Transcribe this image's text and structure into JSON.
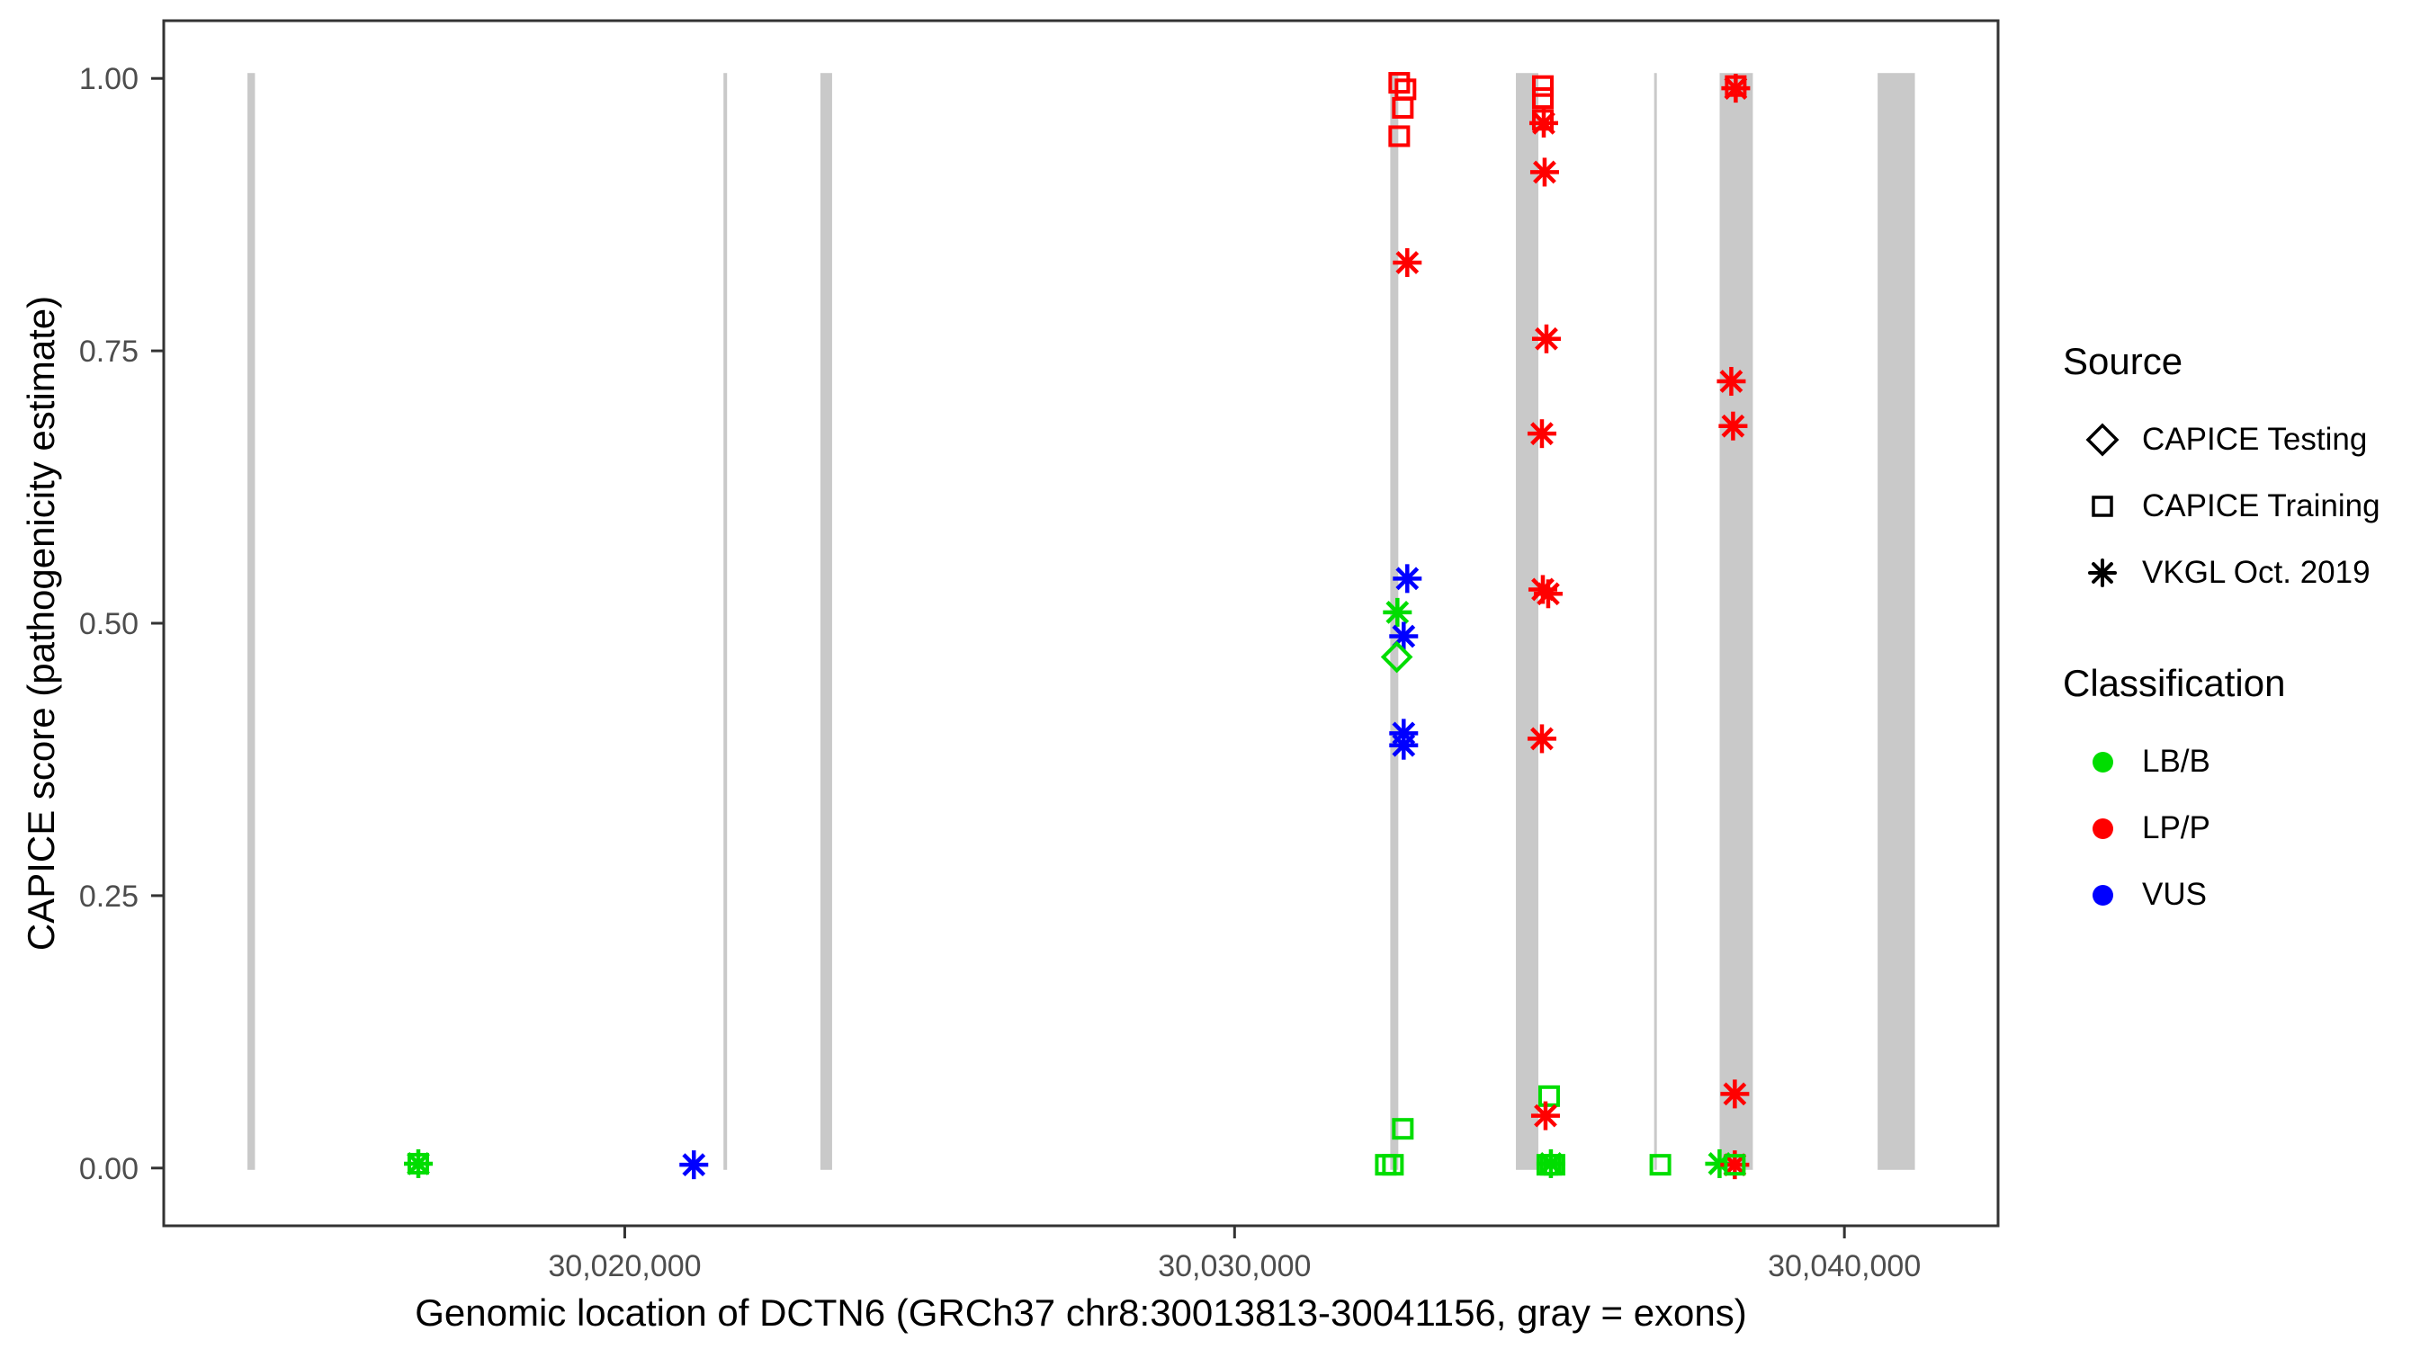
{
  "chart_data": {
    "type": "scatter",
    "title": "",
    "xlabel": "Genomic location of DCTN6 (GRCh37 chr8:30013813-30041156, gray = exons)",
    "ylabel": "CAPICE score (pathogenicity estimate)",
    "xlim": [
      30012440,
      30042520
    ],
    "ylim": [
      -0.053,
      1.053
    ],
    "grid": "off",
    "legend_position": "right",
    "x_axis": {
      "ticks": [
        {
          "value": 30020000,
          "label": "30,020,000"
        },
        {
          "value": 30030000,
          "label": "30,030,000"
        },
        {
          "value": 30040000,
          "label": "30,040,000"
        }
      ]
    },
    "y_axis": {
      "ticks": [
        {
          "value": 0.0,
          "label": "0.00"
        },
        {
          "value": 0.25,
          "label": "0.25"
        },
        {
          "value": 0.5,
          "label": "0.50"
        },
        {
          "value": 0.75,
          "label": "0.75"
        },
        {
          "value": 1.0,
          "label": "1.00"
        }
      ]
    },
    "exons_note": "gray vertical bars mark exon regions, drawn from score 0 to 1",
    "exons": [
      {
        "start": 30013813,
        "end": 30013936
      },
      {
        "start": 30021619,
        "end": 30021678
      },
      {
        "start": 30023208,
        "end": 30023400
      },
      {
        "start": 30032553,
        "end": 30032685
      },
      {
        "start": 30034613,
        "end": 30034981
      },
      {
        "start": 30036880,
        "end": 30036924
      },
      {
        "start": 30037954,
        "end": 30038499
      },
      {
        "start": 30040545,
        "end": 30041156
      }
    ],
    "shape_map": {
      "CAPICE Testing": "diamond",
      "CAPICE Training": "square",
      "VKGL Oct. 2019": "asterisk"
    },
    "colors": {
      "LB/B": "#00DD00",
      "LP/P": "#FF0000",
      "VUS": "#0000FF",
      "exon": "#C9C9C9",
      "panel_border": "#333333",
      "tick_text": "#4D4D4D"
    },
    "points": [
      {
        "x": 30016615,
        "y": 0.004,
        "source": "CAPICE Training",
        "classification": "LB/B"
      },
      {
        "x": 30016615,
        "y": 0.004,
        "source": "VKGL Oct. 2019",
        "classification": "LB/B"
      },
      {
        "x": 30021133,
        "y": 0.003,
        "source": "VKGL Oct. 2019",
        "classification": "VUS"
      },
      {
        "x": 30032700,
        "y": 0.996,
        "source": "CAPICE Training",
        "classification": "LP/P"
      },
      {
        "x": 30032803,
        "y": 0.99,
        "source": "CAPICE Training",
        "classification": "LP/P"
      },
      {
        "x": 30032759,
        "y": 0.973,
        "source": "CAPICE Training",
        "classification": "LP/P"
      },
      {
        "x": 30032700,
        "y": 0.947,
        "source": "CAPICE Training",
        "classification": "LP/P"
      },
      {
        "x": 30032832,
        "y": 0.831,
        "source": "VKGL Oct. 2019",
        "classification": "LP/P"
      },
      {
        "x": 30032832,
        "y": 0.541,
        "source": "VKGL Oct. 2019",
        "classification": "VUS"
      },
      {
        "x": 30032670,
        "y": 0.51,
        "source": "VKGL Oct. 2019",
        "classification": "LB/B"
      },
      {
        "x": 30032773,
        "y": 0.488,
        "source": "VKGL Oct. 2019",
        "classification": "VUS"
      },
      {
        "x": 30032660,
        "y": 0.469,
        "source": "CAPICE Testing",
        "classification": "LB/B"
      },
      {
        "x": 30032773,
        "y": 0.399,
        "source": "VKGL Oct. 2019",
        "classification": "VUS"
      },
      {
        "x": 30032773,
        "y": 0.388,
        "source": "VKGL Oct. 2019",
        "classification": "VUS"
      },
      {
        "x": 30032759,
        "y": 0.036,
        "source": "CAPICE Training",
        "classification": "LB/B"
      },
      {
        "x": 30032480,
        "y": 0.003,
        "source": "CAPICE Training",
        "classification": "LB/B"
      },
      {
        "x": 30032597,
        "y": 0.003,
        "source": "CAPICE Training",
        "classification": "LB/B"
      },
      {
        "x": 30035055,
        "y": 0.993,
        "source": "CAPICE Training",
        "classification": "LP/P"
      },
      {
        "x": 30035055,
        "y": 0.982,
        "source": "CAPICE Training",
        "classification": "LP/P"
      },
      {
        "x": 30035055,
        "y": 0.962,
        "source": "CAPICE Training",
        "classification": "LP/P"
      },
      {
        "x": 30035070,
        "y": 0.959,
        "source": "VKGL Oct. 2019",
        "classification": "LP/P"
      },
      {
        "x": 30035084,
        "y": 0.914,
        "source": "VKGL Oct. 2019",
        "classification": "LP/P"
      },
      {
        "x": 30035114,
        "y": 0.761,
        "source": "VKGL Oct. 2019",
        "classification": "LP/P"
      },
      {
        "x": 30035040,
        "y": 0.674,
        "source": "VKGL Oct. 2019",
        "classification": "LP/P"
      },
      {
        "x": 30035055,
        "y": 0.531,
        "source": "VKGL Oct. 2019",
        "classification": "LP/P"
      },
      {
        "x": 30035143,
        "y": 0.527,
        "source": "VKGL Oct. 2019",
        "classification": "LP/P"
      },
      {
        "x": 30035040,
        "y": 0.394,
        "source": "VKGL Oct. 2019",
        "classification": "LP/P"
      },
      {
        "x": 30035158,
        "y": 0.066,
        "source": "CAPICE Training",
        "classification": "LB/B"
      },
      {
        "x": 30035099,
        "y": 0.048,
        "source": "VKGL Oct. 2019",
        "classification": "LP/P"
      },
      {
        "x": 30035128,
        "y": 0.003,
        "source": "CAPICE Training",
        "classification": "LB/B"
      },
      {
        "x": 30035246,
        "y": 0.003,
        "source": "CAPICE Training",
        "classification": "LB/B"
      },
      {
        "x": 30035187,
        "y": 0.004,
        "source": "VKGL Oct. 2019",
        "classification": "LB/B"
      },
      {
        "x": 30035187,
        "y": 0.003,
        "source": "CAPICE Training",
        "classification": "LB/B"
      },
      {
        "x": 30036982,
        "y": 0.003,
        "source": "CAPICE Training",
        "classification": "LB/B"
      },
      {
        "x": 30038218,
        "y": 0.993,
        "source": "CAPICE Training",
        "classification": "LP/P"
      },
      {
        "x": 30038218,
        "y": 0.991,
        "source": "VKGL Oct. 2019",
        "classification": "LP/P"
      },
      {
        "x": 30038145,
        "y": 0.722,
        "source": "VKGL Oct. 2019",
        "classification": "LP/P"
      },
      {
        "x": 30038174,
        "y": 0.681,
        "source": "VKGL Oct. 2019",
        "classification": "LP/P"
      },
      {
        "x": 30038203,
        "y": 0.068,
        "source": "VKGL Oct. 2019",
        "classification": "LP/P"
      },
      {
        "x": 30037953,
        "y": 0.004,
        "source": "VKGL Oct. 2019",
        "classification": "LB/B"
      },
      {
        "x": 30038203,
        "y": 0.003,
        "source": "VKGL Oct. 2019",
        "classification": "LP/P"
      },
      {
        "x": 30038203,
        "y": 0.003,
        "source": "CAPICE Training",
        "classification": "LB/B"
      }
    ],
    "source_legend": {
      "title": "Source",
      "items": [
        {
          "label": "CAPICE Testing",
          "shape": "diamond"
        },
        {
          "label": "CAPICE Training",
          "shape": "square"
        },
        {
          "label": "VKGL Oct. 2019",
          "shape": "asterisk"
        }
      ]
    },
    "classification_legend": {
      "title": "Classification",
      "items": [
        {
          "label": "LB/B",
          "color_key": "LB/B"
        },
        {
          "label": "LP/P",
          "color_key": "LP/P"
        },
        {
          "label": "VUS",
          "color_key": "VUS"
        }
      ]
    }
  }
}
